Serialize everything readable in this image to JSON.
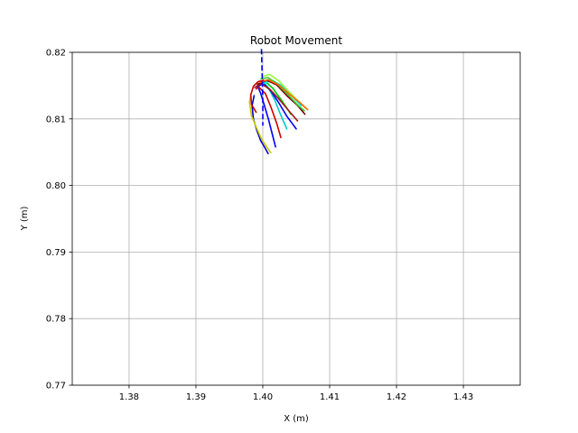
{
  "chart_data": {
    "type": "line",
    "title": "Robot Movement",
    "xlabel": "X (m)",
    "ylabel": "Y (m)",
    "xlim": [
      1.3715,
      1.4385
    ],
    "ylim": [
      0.77,
      0.82
    ],
    "xticks": [
      "1.38",
      "1.39",
      "1.40",
      "1.41",
      "1.42",
      "1.43"
    ],
    "yticks": [
      "0.77",
      "0.78",
      "0.79",
      "0.80",
      "0.81",
      "0.82"
    ],
    "grid": true,
    "reference_line": {
      "style": "dashed",
      "color": "#0000ff",
      "x": [
        1.3998,
        1.3999,
        1.4,
        1.4
      ],
      "y": [
        0.8205,
        0.817,
        0.813,
        0.809
      ]
    },
    "series": [
      {
        "color": "#0000cc",
        "x": [
          1.3987,
          1.3984,
          1.3986,
          1.3991,
          1.3997,
          1.4003,
          1.4008
        ],
        "y": [
          0.8135,
          0.812,
          0.81,
          0.8083,
          0.8067,
          0.8057,
          0.8048
        ]
      },
      {
        "color": "#cccc00",
        "x": [
          1.3982,
          1.398,
          1.3983,
          1.399,
          1.3998,
          1.4006,
          1.4012
        ],
        "y": [
          0.8137,
          0.8125,
          0.8105,
          0.8088,
          0.807,
          0.8058,
          0.8049
        ]
      },
      {
        "color": "#0000ff",
        "x": [
          1.3992,
          1.3997,
          1.4003,
          1.4009,
          1.4014,
          1.4019
        ],
        "y": [
          0.815,
          0.8138,
          0.8118,
          0.8098,
          0.8078,
          0.8058
        ]
      },
      {
        "color": "#cc0000",
        "x": [
          1.399,
          1.3994,
          1.4004,
          1.4012,
          1.4021,
          1.4027
        ],
        "y": [
          0.8145,
          0.8148,
          0.8138,
          0.8118,
          0.8093,
          0.8072
        ]
      },
      {
        "color": "#00cccc",
        "x": [
          1.3993,
          1.4,
          1.4009,
          1.4018,
          1.4026,
          1.4036
        ],
        "y": [
          0.815,
          0.8157,
          0.8146,
          0.8128,
          0.8108,
          0.8085
        ]
      },
      {
        "color": "#0000ff",
        "x": [
          1.3991,
          1.4001,
          1.4012,
          1.4024,
          1.4036,
          1.405
        ],
        "y": [
          0.8148,
          0.8153,
          0.8142,
          0.8124,
          0.8104,
          0.8085
        ]
      },
      {
        "color": "#00cc00",
        "x": [
          1.3993,
          1.4003,
          1.4015,
          1.4028,
          1.4042
        ],
        "y": [
          0.8152,
          0.8157,
          0.8146,
          0.8128,
          0.8107
        ]
      },
      {
        "color": "#a01818",
        "x": [
          1.3988,
          1.3997,
          1.401,
          1.4024,
          1.4039,
          1.4052
        ],
        "y": [
          0.8147,
          0.8153,
          0.8145,
          0.813,
          0.8112,
          0.8097
        ]
      },
      {
        "color": "#00e0e0",
        "x": [
          1.4,
          1.4014,
          1.4028,
          1.4044,
          1.4057
        ],
        "y": [
          0.8153,
          0.8158,
          0.815,
          0.8134,
          0.812
        ]
      },
      {
        "color": "#800000",
        "x": [
          1.3992,
          1.4006,
          1.4021,
          1.4036,
          1.4052,
          1.4063
        ],
        "y": [
          0.8152,
          0.8158,
          0.8151,
          0.8135,
          0.812,
          0.8107
        ]
      },
      {
        "color": "#33cc33",
        "x": [
          1.3997,
          1.4008,
          1.4022,
          1.4037,
          1.4051,
          1.4062
        ],
        "y": [
          0.816,
          0.8162,
          0.8152,
          0.8137,
          0.8122,
          0.8112
        ]
      },
      {
        "color": "#99ff33",
        "x": [
          1.3999,
          1.401,
          1.4024,
          1.404,
          1.4054,
          1.4064
        ],
        "y": [
          0.8163,
          0.8167,
          0.8157,
          0.814,
          0.8126,
          0.8116
        ]
      },
      {
        "color": "#ff6600",
        "x": [
          1.3996,
          1.4008,
          1.4024,
          1.404,
          1.4056,
          1.4067
        ],
        "y": [
          0.8155,
          0.8159,
          0.8151,
          0.8137,
          0.8124,
          0.8114
        ]
      },
      {
        "color": "#cc0000",
        "x": [
          1.399,
          1.3983,
          1.3982,
          1.3986,
          1.3993,
          1.4001
        ],
        "y": [
          0.811,
          0.8122,
          0.8136,
          0.8149,
          0.8156,
          0.8158
        ]
      }
    ]
  }
}
